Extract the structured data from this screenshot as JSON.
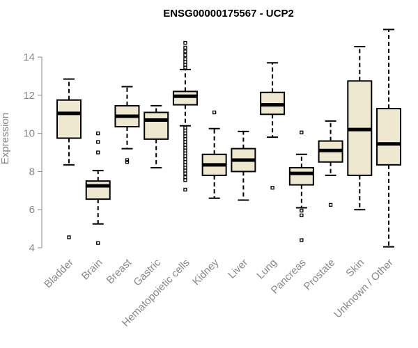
{
  "chart_data": {
    "type": "boxplot",
    "title": "ENSG00000175567 - UCP2",
    "xlabel": "",
    "ylabel": "Expression",
    "ylim": [
      4,
      15.5
    ],
    "yticks": [
      4,
      6,
      8,
      10,
      12,
      14
    ],
    "box_fill": "#EEE8D0",
    "categories": [
      "Bladder",
      "Brain",
      "Breast",
      "Gastric",
      "Hematopoietic cells",
      "Kidney",
      "Liver",
      "Lung",
      "Pancreas",
      "Prostate",
      "Skin",
      "Unknown / Other"
    ],
    "series": [
      {
        "name": "Bladder",
        "whisker_low": 8.35,
        "q1": 9.75,
        "median": 11.05,
        "q3": 11.75,
        "whisker_high": 12.85,
        "outliers": [
          4.55
        ]
      },
      {
        "name": "Brain",
        "whisker_low": 5.25,
        "q1": 6.55,
        "median": 7.25,
        "q3": 7.5,
        "whisker_high": 8.05,
        "outliers": [
          10.0,
          9.55,
          9.0,
          4.25
        ]
      },
      {
        "name": "Breast",
        "whisker_low": 9.2,
        "q1": 10.35,
        "median": 10.9,
        "q3": 11.45,
        "whisker_high": 12.45,
        "outliers": [
          8.6,
          8.5
        ]
      },
      {
        "name": "Gastric",
        "whisker_low": 8.2,
        "q1": 9.7,
        "median": 10.7,
        "q3": 11.1,
        "whisker_high": 11.45,
        "outliers": []
      },
      {
        "name": "Hematopoietic cells",
        "whisker_low": 10.4,
        "q1": 11.5,
        "median": 11.95,
        "q3": 12.2,
        "whisker_high": 13.35,
        "outliers": [
          14.75,
          14.5,
          14.3,
          14.1,
          13.9,
          13.75,
          13.6,
          13.45,
          10.3,
          10.15,
          10.0,
          9.85,
          9.7,
          9.55,
          9.4,
          9.25,
          9.1,
          8.95,
          8.8,
          8.65,
          8.5,
          8.35,
          8.2,
          8.05,
          7.9,
          7.7,
          7.55,
          7.05
        ]
      },
      {
        "name": "Kidney",
        "whisker_low": 6.6,
        "q1": 7.8,
        "median": 8.35,
        "q3": 8.9,
        "whisker_high": 10.25,
        "outliers": [
          11.1
        ]
      },
      {
        "name": "Liver",
        "whisker_low": 6.5,
        "q1": 8.0,
        "median": 8.6,
        "q3": 9.2,
        "whisker_high": 10.1,
        "outliers": []
      },
      {
        "name": "Lung",
        "whisker_low": 9.8,
        "q1": 11.0,
        "median": 11.5,
        "q3": 12.15,
        "whisker_high": 13.7,
        "outliers": [
          7.15
        ]
      },
      {
        "name": "Pancreas",
        "whisker_low": 6.1,
        "q1": 7.3,
        "median": 7.9,
        "q3": 8.2,
        "whisker_high": 8.9,
        "outliers": [
          10.05,
          5.95,
          5.7,
          4.4
        ]
      },
      {
        "name": "Prostate",
        "whisker_low": 7.8,
        "q1": 8.5,
        "median": 9.1,
        "q3": 9.6,
        "whisker_high": 10.65,
        "outliers": [
          6.25
        ]
      },
      {
        "name": "Skin",
        "whisker_low": 6.0,
        "q1": 7.8,
        "median": 10.2,
        "q3": 12.75,
        "whisker_high": 14.55,
        "outliers": []
      },
      {
        "name": "Unknown / Other",
        "whisker_low": 4.05,
        "q1": 8.35,
        "median": 9.45,
        "q3": 11.3,
        "whisker_high": 15.45,
        "outliers": []
      }
    ]
  }
}
